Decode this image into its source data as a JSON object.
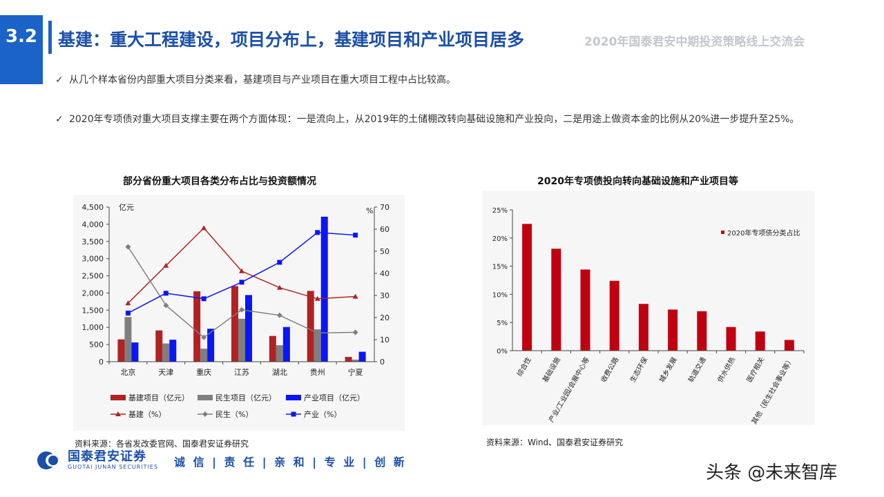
{
  "header": {
    "section_number": "3.2",
    "title": "基建：重大工程建设，项目分布上，基建项目和产业项目居多",
    "event_name": "2020年国泰君安中期投资策略线上交流会"
  },
  "bullets": [
    {
      "check": "✓",
      "text": "从几个样本省份内部重大项目分类来看，基建项目与产业项目在重大项目工程中占比较高。"
    },
    {
      "check": "✓",
      "text": "2020年专项债对重大项目支撑主要在两个方面体现：一是流向上，从2019年的土储棚改转向基础设施和产业投向，二是用途上做资本金的比例从20%进一步提升至25%。"
    }
  ],
  "colors": {
    "brand_blue": "#1b62c9",
    "title_blue": "#1b4fa8",
    "infra_red": "#b22222",
    "livelihood_gray": "#7f7f7f",
    "industry_blue": "#0a16f5",
    "bar_red": "#c0000f"
  },
  "chart_data": [
    {
      "type": "bar",
      "title": "部分省份重大项目各类分布占比与投资额情况",
      "categories": [
        "北京",
        "天津",
        "重庆",
        "江苏",
        "湖北",
        "贵州",
        "宁夏"
      ],
      "ylabel": "亿元",
      "ylim": [
        0,
        4500
      ],
      "yticks": [
        "0",
        "500",
        "1,000",
        "1,500",
        "2,000",
        "2,500",
        "3,000",
        "3,500",
        "4,000",
        "4,500"
      ],
      "y2label": "%",
      "y2lim": [
        0,
        70
      ],
      "y2ticks": [
        "0",
        "10",
        "20",
        "30",
        "40",
        "50",
        "60",
        "70"
      ],
      "series": [
        {
          "name": "基建项目（亿元）",
          "kind": "bar",
          "axis": "left",
          "values": [
            650,
            910,
            2050,
            2200,
            750,
            2060,
            140
          ]
        },
        {
          "name": "民生项目（亿元）",
          "kind": "bar",
          "axis": "left",
          "values": [
            1300,
            530,
            380,
            1250,
            480,
            940,
            60
          ]
        },
        {
          "name": "产业项目（亿元）",
          "kind": "bar",
          "axis": "left",
          "values": [
            560,
            640,
            960,
            1940,
            1010,
            4220,
            290
          ]
        },
        {
          "name": "基建（%）",
          "kind": "line",
          "axis": "right",
          "marker": "triangle",
          "values": [
            26.5,
            43.5,
            60.5,
            41,
            33.5,
            28.5,
            29.5
          ]
        },
        {
          "name": "民生（%）",
          "kind": "line",
          "axis": "right",
          "marker": "diamond",
          "values": [
            52,
            25.5,
            11,
            23.5,
            21,
            13,
            13.3
          ]
        },
        {
          "name": "产业（%）",
          "kind": "line",
          "axis": "right",
          "marker": "square",
          "values": [
            22,
            31,
            28.5,
            36,
            45,
            58.5,
            57.3
          ]
        }
      ],
      "legend_placement": "bottom",
      "source": "资料来源：各省发改委官网、国泰君安证券研究"
    },
    {
      "type": "bar",
      "title": "2020年专项债投向转向基础设施和产业项目等",
      "categories": [
        "综合性",
        "基础设施",
        "产业/工业园/会展中心等",
        "收费公路",
        "生态环保",
        "城乡发展",
        "轨道交通",
        "供水供热",
        "医疗相关",
        "其他（民生社会事业等）"
      ],
      "series": [
        {
          "name": "2020年专项债分类占比",
          "values": [
            22.5,
            18.1,
            14.4,
            12.4,
            8.3,
            7.3,
            7.0,
            4.2,
            3.4,
            1.9
          ]
        }
      ],
      "ylim": [
        0,
        25
      ],
      "yticks": [
        "0%",
        "5%",
        "10%",
        "15%",
        "20%",
        "25%"
      ],
      "legend_placement": "top-right",
      "source": "资料来源：Wind、国泰君安证券研究"
    }
  ],
  "footer": {
    "logo_cn": "国泰君安证券",
    "logo_en": "GUOTAI JUNAN SECURITIES",
    "slogan": "诚 信 | 责 任 | 亲 和 | 专 业 | 创 新",
    "watermark": "头条 @未来智库"
  }
}
